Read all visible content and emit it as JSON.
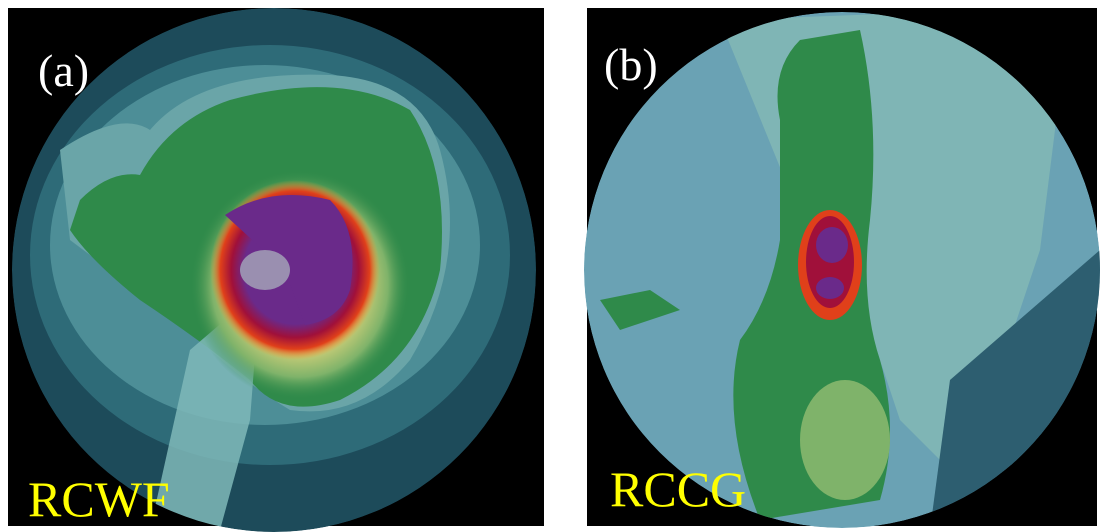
{
  "panels": [
    {
      "label": "(a)",
      "radar": "RCWF"
    },
    {
      "label": "(b)",
      "radar": "RCCG"
    }
  ]
}
